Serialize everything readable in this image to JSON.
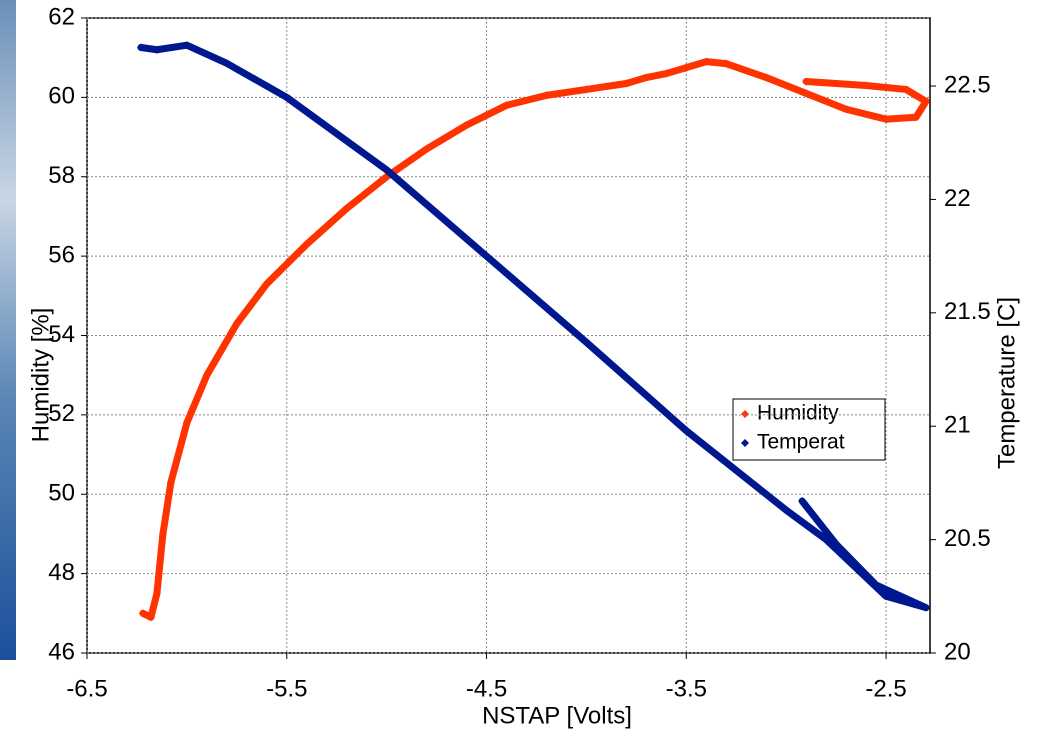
{
  "chart_data": {
    "type": "scatter",
    "x_label": "NSTAP [Volts]",
    "y_label": "Humidity [%]",
    "y2_label": "Temperature [C]",
    "xlim": [
      -6.5,
      -2.28
    ],
    "xticks": [
      -6.5,
      -5.5,
      -4.5,
      -3.5,
      -2.5
    ],
    "ylim": [
      46,
      62
    ],
    "yticks": [
      46,
      48,
      50,
      52,
      54,
      56,
      58,
      60,
      62
    ],
    "y2lim": [
      20,
      22.8
    ],
    "y2ticks": [
      20,
      20.5,
      21,
      21.5,
      22,
      22.5
    ],
    "grid": true,
    "legend": "right",
    "series": [
      {
        "name": "Humidity",
        "color": "#ff3300",
        "x": [
          -6.22,
          -6.18,
          -6.15,
          -6.12,
          -6.08,
          -6.0,
          -5.9,
          -5.75,
          -5.6,
          -5.4,
          -5.2,
          -5.0,
          -4.8,
          -4.6,
          -4.4,
          -4.2,
          -4.0,
          -3.8,
          -3.7,
          -3.6,
          -3.5,
          -3.4,
          -3.3,
          -3.1,
          -2.9,
          -2.7,
          -2.5,
          -2.35,
          -2.3,
          -2.4,
          -2.6,
          -2.9
        ],
        "values": [
          47.0,
          46.9,
          47.5,
          49.0,
          50.3,
          51.8,
          53.0,
          54.3,
          55.3,
          56.3,
          57.2,
          58.0,
          58.7,
          59.3,
          59.8,
          60.05,
          60.2,
          60.35,
          60.5,
          60.6,
          60.75,
          60.9,
          60.85,
          60.5,
          60.1,
          59.7,
          59.45,
          59.5,
          59.9,
          60.2,
          60.3,
          60.4
        ]
      },
      {
        "name": "Temperat",
        "color": "#00188f",
        "axis": "y2",
        "x": [
          -6.23,
          -6.15,
          -6.0,
          -5.8,
          -5.5,
          -5.0,
          -4.5,
          -4.0,
          -3.5,
          -3.0,
          -2.8,
          -2.5,
          -2.3,
          -2.55,
          -2.75,
          -2.92
        ],
        "values": [
          22.67,
          22.66,
          22.68,
          22.6,
          22.45,
          22.13,
          21.75,
          21.37,
          20.98,
          20.63,
          20.5,
          20.25,
          20.2,
          20.3,
          20.48,
          20.67
        ]
      }
    ]
  }
}
